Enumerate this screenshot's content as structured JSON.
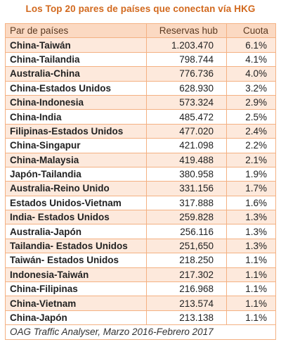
{
  "title": "Los Top 20 pares de países que conectan vía HKG",
  "headers": {
    "pair": "Par de países",
    "reservations": "Reservas hub",
    "share": "Cuota"
  },
  "rows": [
    {
      "pair": "China-Taiwán",
      "reservations": "1.203.470",
      "share": "6.1%"
    },
    {
      "pair": "China-Tailandia",
      "reservations": "798.744",
      "share": "4.1%"
    },
    {
      "pair": "Australia-China",
      "reservations": "776.736",
      "share": "4.0%"
    },
    {
      "pair": "China-Estados Unidos",
      "reservations": "628.930",
      "share": "3.2%"
    },
    {
      "pair": "China-Indonesia",
      "reservations": "573.324",
      "share": "2.9%"
    },
    {
      "pair": "China-India",
      "reservations": "485.472",
      "share": "2.5%"
    },
    {
      "pair": "Filipinas-Estados Unidos",
      "reservations": "477.020",
      "share": "2.4%"
    },
    {
      "pair": "China-Singapur",
      "reservations": "421.098",
      "share": "2.2%"
    },
    {
      "pair": "China-Malaysia",
      "reservations": "419.488",
      "share": "2.1%"
    },
    {
      "pair": "Japón-Tailandia",
      "reservations": "380.958",
      "share": "1.9%"
    },
    {
      "pair": "Australia-Reino Unido",
      "reservations": "331.156",
      "share": "1.7%"
    },
    {
      "pair": "Estados Unidos-Vietnam",
      "reservations": "317.888",
      "share": "1.6%"
    },
    {
      "pair": "India- Estados Unidos",
      "reservations": "259.828",
      "share": "1.3%"
    },
    {
      "pair": "Australia-Japón",
      "reservations": "256.116",
      "share": "1.3%"
    },
    {
      "pair": "Tailandia- Estados Unidos",
      "reservations": "251,650",
      "share": "1.3%"
    },
    {
      "pair": "Taiwán- Estados Unidos",
      "reservations": "218.250",
      "share": "1.1%"
    },
    {
      "pair": "Indonesia-Taiwán",
      "reservations": "217.302",
      "share": "1.1%"
    },
    {
      "pair": "China-Filipinas",
      "reservations": "216.968",
      "share": "1.1%"
    },
    {
      "pair": "China-Vietnam",
      "reservations": "213.574",
      "share": "1.1%"
    },
    {
      "pair": "China-Japón",
      "reservations": "213.138",
      "share": "1.1%"
    }
  ],
  "footer": "OAG Traffic Analyser, Marzo 2016-Febrero 2017",
  "colors": {
    "title": "#d2691e",
    "header_fill": "#fbd9c2",
    "band_fill": "#fde9dc",
    "border": "#f4b183"
  }
}
